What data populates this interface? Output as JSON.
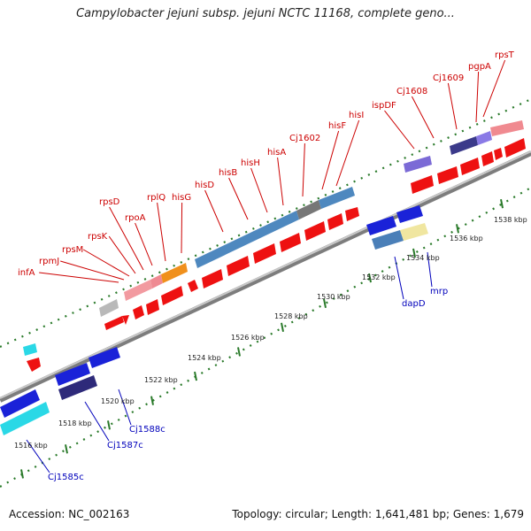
{
  "title": "Campylobacter jejuni subsp. jejuni NCTC 11168, complete geno...",
  "footer": {
    "accession": "Accession: NC_002163",
    "summary": "Topology: circular; Length: 1,641,481 bp; Genes: 1,679"
  },
  "colors": {
    "forward_label": "#cc0000",
    "reverse_label": "#0000bb",
    "tick": "#2a7a2a",
    "backbone": "#9a9a9a"
  },
  "scale_labels": [
    "1516 kbp",
    "1518 kbp",
    "1520 kbp",
    "1522 kbp",
    "1524 kbp",
    "1526 kbp",
    "1528 kbp",
    "1530 kbp",
    "1532 kbp",
    "1534 kbp",
    "1536 kbp",
    "1538 kbp"
  ],
  "forward_labels": [
    "infA",
    "rpmJ",
    "rpsM",
    "rpsK",
    "rpsD",
    "rpoA",
    "rplQ",
    "hisG",
    "hisD",
    "hisB",
    "hisH",
    "hisA",
    "Cj1602",
    "hisF",
    "hisI",
    "ispDF",
    "Cj1608",
    "Cj1609",
    "pgpA",
    "rpsT"
  ],
  "reverse_labels": [
    "Cj1585c",
    "Cj1587c",
    "Cj1588c",
    "dapD",
    "mrp"
  ]
}
